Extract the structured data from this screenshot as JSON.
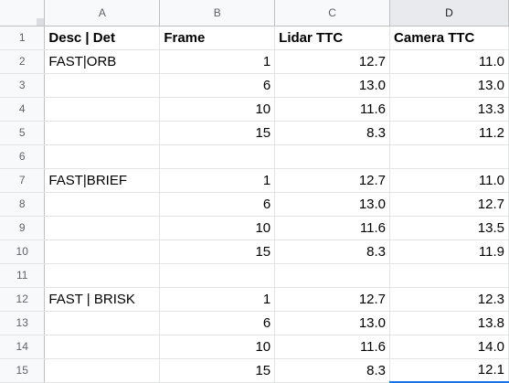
{
  "columns": [
    "A",
    "B",
    "C",
    "D"
  ],
  "rows": [
    {
      "num": "1",
      "cells": [
        "Desc | Det",
        "Frame",
        "Lidar TTC",
        "Camera TTC"
      ],
      "header": true
    },
    {
      "num": "2",
      "cells": [
        "FAST|ORB",
        "1",
        "12.7",
        "11.0"
      ]
    },
    {
      "num": "3",
      "cells": [
        "",
        "6",
        "13.0",
        "13.0"
      ]
    },
    {
      "num": "4",
      "cells": [
        "",
        "10",
        "11.6",
        "13.3"
      ]
    },
    {
      "num": "5",
      "cells": [
        "",
        "15",
        "8.3",
        "11.2"
      ]
    },
    {
      "num": "6",
      "cells": [
        "",
        "",
        "",
        ""
      ]
    },
    {
      "num": "7",
      "cells": [
        "FAST|BRIEF",
        "1",
        "12.7",
        "11.0"
      ]
    },
    {
      "num": "8",
      "cells": [
        "",
        "6",
        "13.0",
        "12.7"
      ]
    },
    {
      "num": "9",
      "cells": [
        "",
        "10",
        "11.6",
        "13.5"
      ]
    },
    {
      "num": "10",
      "cells": [
        "",
        "15",
        "8.3",
        "11.9"
      ]
    },
    {
      "num": "11",
      "cells": [
        "",
        "",
        "",
        ""
      ]
    },
    {
      "num": "12",
      "cells": [
        "FAST | BRISK",
        "1",
        "12.7",
        "12.3"
      ]
    },
    {
      "num": "13",
      "cells": [
        "",
        "6",
        "13.0",
        "13.8"
      ]
    },
    {
      "num": "14",
      "cells": [
        "",
        "10",
        "11.6",
        "14.0"
      ]
    },
    {
      "num": "15",
      "cells": [
        "",
        "15",
        "8.3",
        "12.1"
      ]
    }
  ],
  "colors": {
    "header_bg": "#f8f9fa",
    "selected_header_bg": "#e8eaed",
    "gridline": "#e2e3e3",
    "selection": "#1a73e8"
  }
}
